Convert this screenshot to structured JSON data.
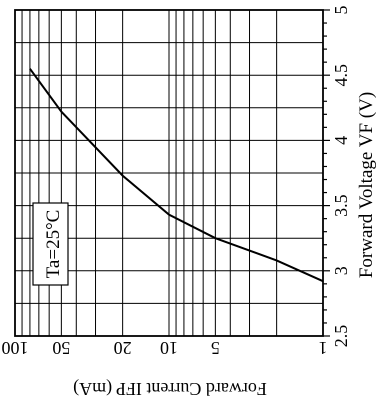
{
  "chart_data": {
    "type": "line",
    "title": "",
    "xlabel": "Forward Current  IFP (mA)",
    "ylabel": "Forward Voltage  VF (V)",
    "x_scale": "log",
    "xlim": [
      1,
      100
    ],
    "ylim": [
      2.5,
      5
    ],
    "x_ticks": [
      {
        "value": 1,
        "label": "1"
      },
      {
        "value": 5,
        "label": "5"
      },
      {
        "value": 10,
        "label": "10"
      },
      {
        "value": 20,
        "label": "20"
      },
      {
        "value": 50,
        "label": "50"
      },
      {
        "value": 100,
        "label": "100"
      }
    ],
    "y_ticks": [
      {
        "value": 2.5,
        "label": "2.5"
      },
      {
        "value": 3,
        "label": "3"
      },
      {
        "value": 3.5,
        "label": "3.5"
      },
      {
        "value": 4,
        "label": "4"
      },
      {
        "value": 4.5,
        "label": "4.5"
      },
      {
        "value": 5,
        "label": "5"
      }
    ],
    "grid": true,
    "orientation": "rotated-180",
    "annotation": "Ta=25°C",
    "series": [
      {
        "x": [
          1,
          2,
          5,
          10,
          20,
          50,
          80
        ],
        "y": [
          2.92,
          3.08,
          3.25,
          3.43,
          3.73,
          4.22,
          4.55
        ]
      }
    ]
  }
}
